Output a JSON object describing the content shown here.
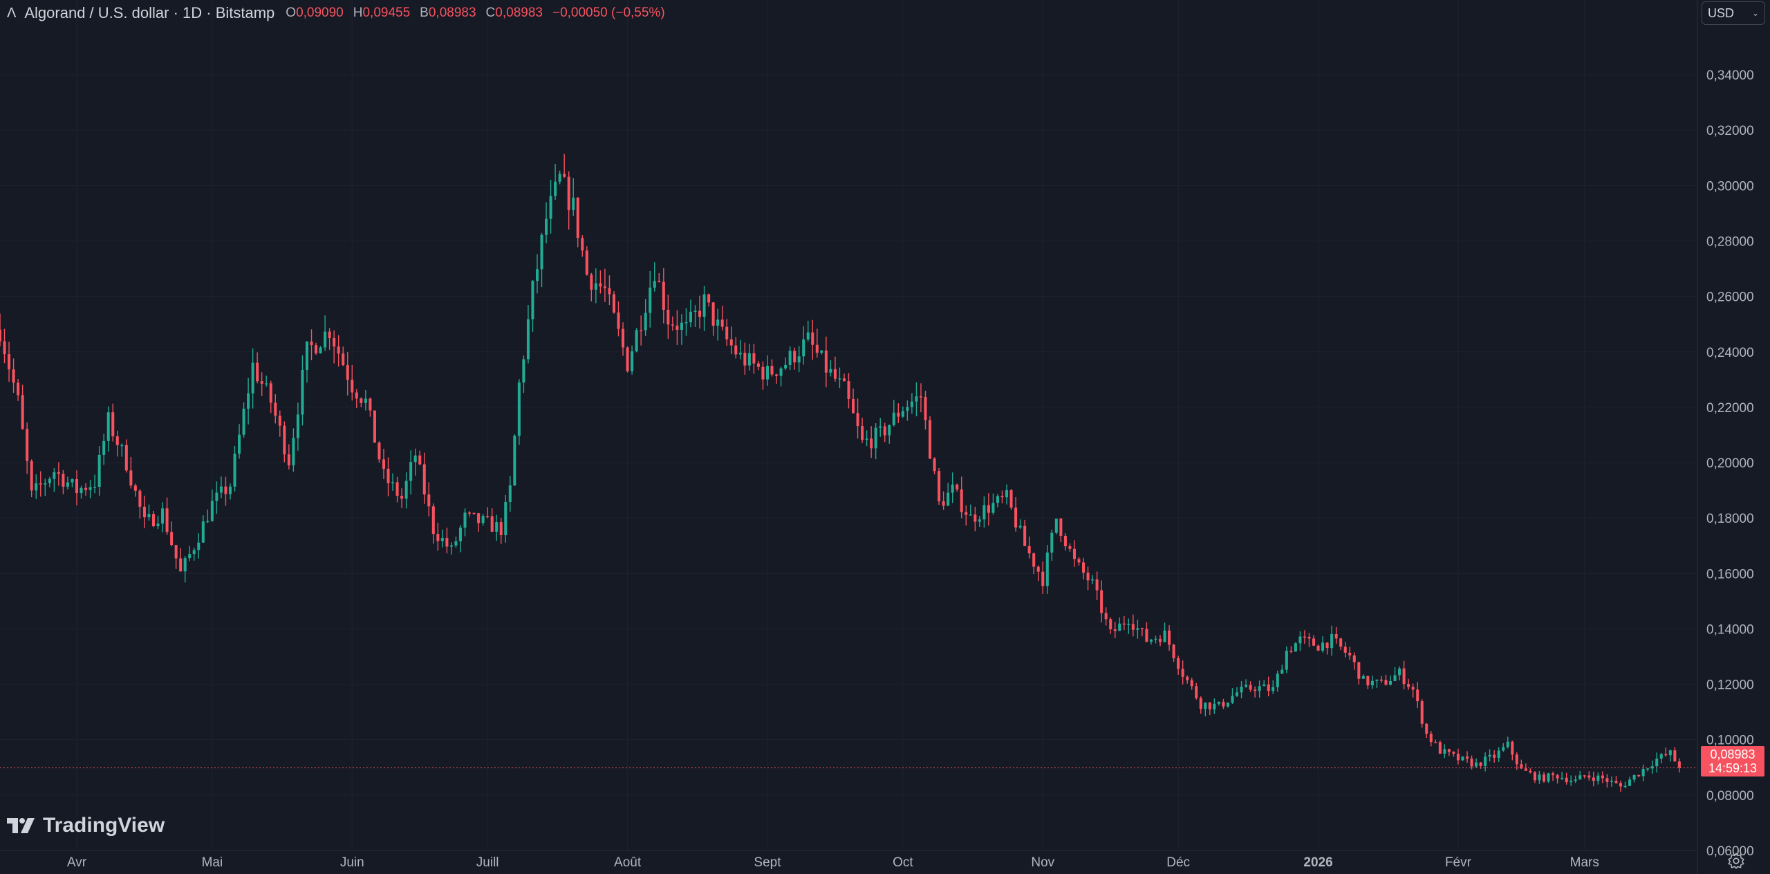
{
  "header": {
    "title": "Algorand / U.S. dollar · 1D · Bitstamp",
    "ohlc": [
      {
        "k": "O",
        "v": "0,09090"
      },
      {
        "k": "H",
        "v": "0,09455"
      },
      {
        "k": "B",
        "v": "0,08983"
      },
      {
        "k": "C",
        "v": "0,08983"
      }
    ],
    "change": "−0,00050 (−0,55%)"
  },
  "currency_button": {
    "label": "USD",
    "icon": "chevron-down-icon"
  },
  "last_price": {
    "value": "0,08983",
    "countdown": "14:59:13"
  },
  "brand": {
    "name": "TradingView"
  },
  "colors": {
    "up": "#22ab94",
    "down": "#f7525f",
    "background": "#161a25",
    "grid": "#232734"
  },
  "chart_data": {
    "type": "candlestick",
    "title": "Algorand / U.S. dollar · 1D · Bitstamp",
    "currency": "USD",
    "last_price": 0.08983,
    "y_ticks": [
      "0,34000",
      "0,32000",
      "0,30000",
      "0,28000",
      "0,26000",
      "0,24000",
      "0,22000",
      "0,20000",
      "0,18000",
      "0,16000",
      "0,14000",
      "0,12000",
      "0,10000",
      "0,08000",
      "0,06000"
    ],
    "y_tick_values": [
      0.34,
      0.32,
      0.3,
      0.28,
      0.26,
      0.24,
      0.22,
      0.2,
      0.18,
      0.16,
      0.14,
      0.12,
      0.1,
      0.08,
      0.06
    ],
    "ylim": [
      0.055,
      0.355
    ],
    "x_ticks": [
      {
        "label": "Avr",
        "date": "2025-04-01",
        "bold": false
      },
      {
        "label": "Mai",
        "date": "2025-05-01",
        "bold": false
      },
      {
        "label": "Juin",
        "date": "2025-06-01",
        "bold": false
      },
      {
        "label": "Juill",
        "date": "2025-07-01",
        "bold": false
      },
      {
        "label": "Août",
        "date": "2025-08-01",
        "bold": false
      },
      {
        "label": "Sept",
        "date": "2025-09-01",
        "bold": false
      },
      {
        "label": "Oct",
        "date": "2025-10-01",
        "bold": false
      },
      {
        "label": "Nov",
        "date": "2025-11-01",
        "bold": false
      },
      {
        "label": "Déc",
        "date": "2025-12-01",
        "bold": false
      },
      {
        "label": "2026",
        "date": "2026-01-01",
        "bold": true
      },
      {
        "label": "Févr",
        "date": "2026-02-01",
        "bold": false
      },
      {
        "label": "Mars",
        "date": "2026-03-01",
        "bold": false
      }
    ],
    "xlim": [
      "2025-03-15",
      "2026-03-26"
    ],
    "close_path": [
      [
        "2025-03-15",
        0.248
      ],
      [
        "2025-03-19",
        0.222
      ],
      [
        "2025-03-22",
        0.188
      ],
      [
        "2025-03-27",
        0.197
      ],
      [
        "2025-04-01",
        0.19
      ],
      [
        "2025-04-05",
        0.193
      ],
      [
        "2025-04-08",
        0.215
      ],
      [
        "2025-04-12",
        0.2
      ],
      [
        "2025-04-16",
        0.178
      ],
      [
        "2025-04-20",
        0.182
      ],
      [
        "2025-04-24",
        0.16
      ],
      [
        "2025-04-27",
        0.17
      ],
      [
        "2025-05-01",
        0.185
      ],
      [
        "2025-05-05",
        0.192
      ],
      [
        "2025-05-10",
        0.235
      ],
      [
        "2025-05-14",
        0.222
      ],
      [
        "2025-05-18",
        0.201
      ],
      [
        "2025-05-22",
        0.24
      ],
      [
        "2025-05-27",
        0.248
      ],
      [
        "2025-06-01",
        0.228
      ],
      [
        "2025-06-04",
        0.222
      ],
      [
        "2025-06-08",
        0.195
      ],
      [
        "2025-06-12",
        0.187
      ],
      [
        "2025-06-15",
        0.203
      ],
      [
        "2025-06-19",
        0.176
      ],
      [
        "2025-06-23",
        0.168
      ],
      [
        "2025-06-26",
        0.18
      ],
      [
        "2025-07-01",
        0.178
      ],
      [
        "2025-07-04",
        0.176
      ],
      [
        "2025-07-06",
        0.19
      ],
      [
        "2025-07-08",
        0.228
      ],
      [
        "2025-07-11",
        0.262
      ],
      [
        "2025-07-14",
        0.288
      ],
      [
        "2025-07-17",
        0.302
      ],
      [
        "2025-07-20",
        0.292
      ],
      [
        "2025-07-23",
        0.268
      ],
      [
        "2025-07-27",
        0.262
      ],
      [
        "2025-08-01",
        0.236
      ],
      [
        "2025-08-04",
        0.252
      ],
      [
        "2025-08-07",
        0.27
      ],
      [
        "2025-08-10",
        0.252
      ],
      [
        "2025-08-14",
        0.248
      ],
      [
        "2025-08-18",
        0.258
      ],
      [
        "2025-08-22",
        0.246
      ],
      [
        "2025-08-26",
        0.238
      ],
      [
        "2025-09-01",
        0.232
      ],
      [
        "2025-09-05",
        0.236
      ],
      [
        "2025-09-10",
        0.244
      ],
      [
        "2025-09-14",
        0.234
      ],
      [
        "2025-09-18",
        0.226
      ],
      [
        "2025-09-22",
        0.207
      ],
      [
        "2025-09-26",
        0.21
      ],
      [
        "2025-10-01",
        0.22
      ],
      [
        "2025-10-05",
        0.224
      ],
      [
        "2025-10-09",
        0.185
      ],
      [
        "2025-10-12",
        0.19
      ],
      [
        "2025-10-16",
        0.18
      ],
      [
        "2025-10-20",
        0.184
      ],
      [
        "2025-10-24",
        0.187
      ],
      [
        "2025-10-28",
        0.17
      ],
      [
        "2025-11-01",
        0.158
      ],
      [
        "2025-11-04",
        0.18
      ],
      [
        "2025-11-08",
        0.164
      ],
      [
        "2025-11-12",
        0.156
      ],
      [
        "2025-11-16",
        0.138
      ],
      [
        "2025-11-20",
        0.144
      ],
      [
        "2025-11-24",
        0.136
      ],
      [
        "2025-11-28",
        0.138
      ],
      [
        "2025-12-02",
        0.124
      ],
      [
        "2025-12-06",
        0.113
      ],
      [
        "2025-12-10",
        0.112
      ],
      [
        "2025-12-14",
        0.117
      ],
      [
        "2025-12-18",
        0.119
      ],
      [
        "2025-12-22",
        0.118
      ],
      [
        "2025-12-25",
        0.132
      ],
      [
        "2025-12-28",
        0.136
      ],
      [
        "2026-01-01",
        0.134
      ],
      [
        "2026-01-04",
        0.136
      ],
      [
        "2026-01-08",
        0.13
      ],
      [
        "2026-01-11",
        0.121
      ],
      [
        "2026-01-15",
        0.12
      ],
      [
        "2026-01-19",
        0.124
      ],
      [
        "2026-01-22",
        0.118
      ],
      [
        "2026-01-25",
        0.102
      ],
      [
        "2026-01-28",
        0.096
      ],
      [
        "2026-02-01",
        0.093
      ],
      [
        "2026-02-05",
        0.091
      ],
      [
        "2026-02-09",
        0.094
      ],
      [
        "2026-02-12",
        0.098
      ],
      [
        "2026-02-15",
        0.089
      ],
      [
        "2026-02-19",
        0.086
      ],
      [
        "2026-02-23",
        0.087
      ],
      [
        "2026-02-27",
        0.085
      ],
      [
        "2026-03-01",
        0.087
      ],
      [
        "2026-03-05",
        0.086
      ],
      [
        "2026-03-09",
        0.083
      ],
      [
        "2026-03-13",
        0.088
      ],
      [
        "2026-03-17",
        0.093
      ],
      [
        "2026-03-20",
        0.095
      ],
      [
        "2026-03-22",
        0.0898
      ]
    ],
    "grid": true,
    "legend": "top-left",
    "crosshair_line": {
      "value": 0.08983,
      "style": "dotted"
    }
  }
}
